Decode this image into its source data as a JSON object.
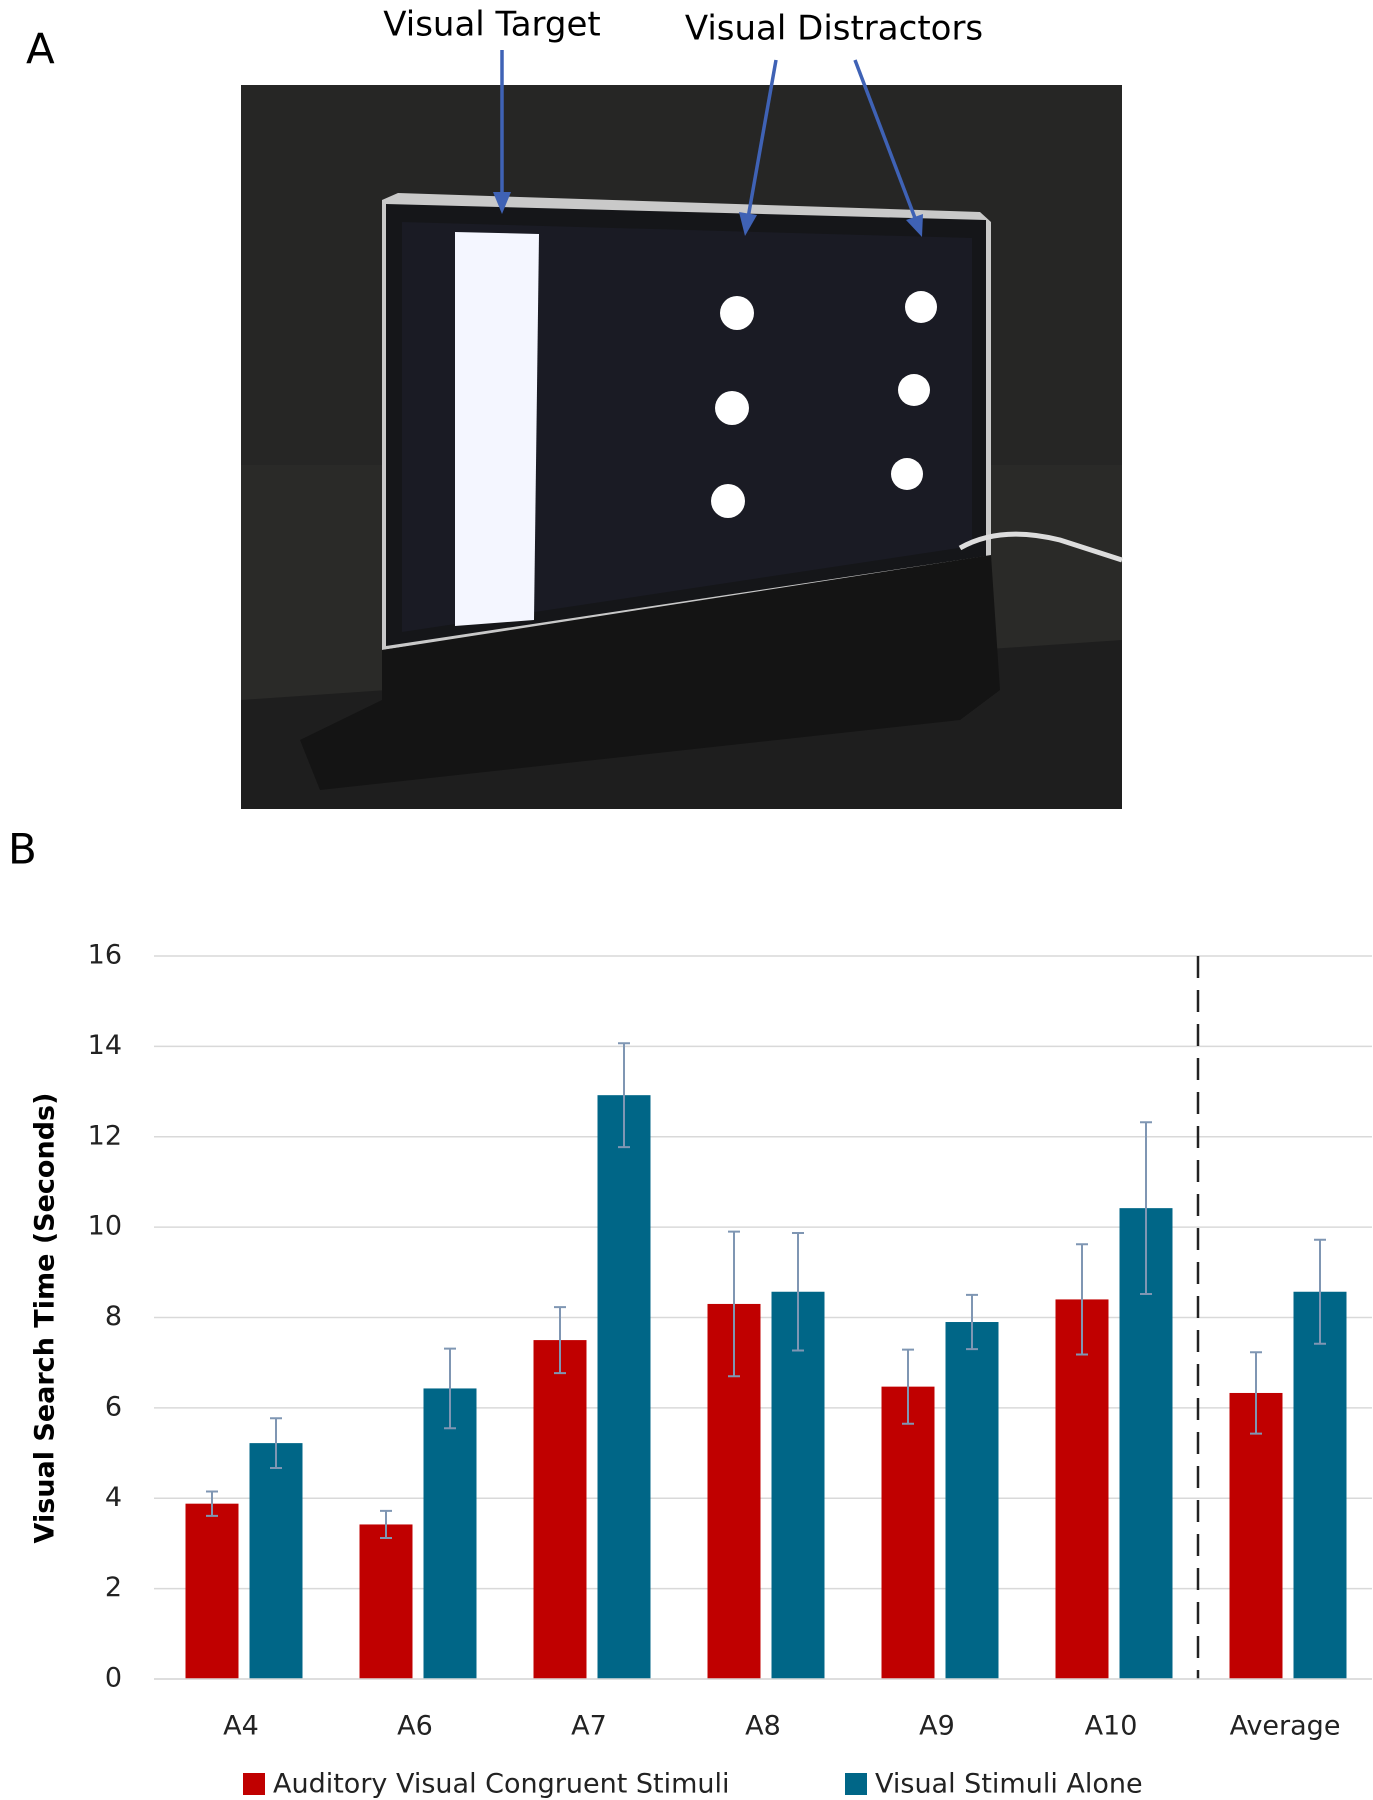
{
  "panel_a": {
    "label": "A",
    "annotations": [
      "Visual Target",
      "Visual Distractors"
    ]
  },
  "panel_b": {
    "label": "B"
  },
  "chart_data": {
    "type": "bar",
    "ylabel": "Visual Search Time (Seconds)",
    "categories": [
      "A4",
      "A6",
      "A7",
      "A8",
      "A9",
      "A10",
      "Average"
    ],
    "series": [
      {
        "name": "Auditory Visual Congruent Stimuli",
        "color": "#c00000",
        "values": [
          3.88,
          3.42,
          7.5,
          8.3,
          6.47,
          8.4,
          6.33
        ],
        "errors": [
          0.27,
          0.3,
          0.73,
          1.6,
          0.82,
          1.22,
          0.9
        ]
      },
      {
        "name": "Visual Stimuli Alone",
        "color": "#006687",
        "values": [
          5.22,
          6.43,
          12.92,
          8.57,
          7.9,
          10.42,
          8.57
        ],
        "errors": [
          0.55,
          0.88,
          1.15,
          1.3,
          0.6,
          1.9,
          1.15
        ]
      }
    ],
    "error_color": "#7f96b3",
    "ylim": [
      0,
      16
    ],
    "yticks": [
      0,
      2,
      4,
      6,
      8,
      10,
      12,
      14,
      16
    ],
    "grid": true,
    "legend": "bottom"
  }
}
